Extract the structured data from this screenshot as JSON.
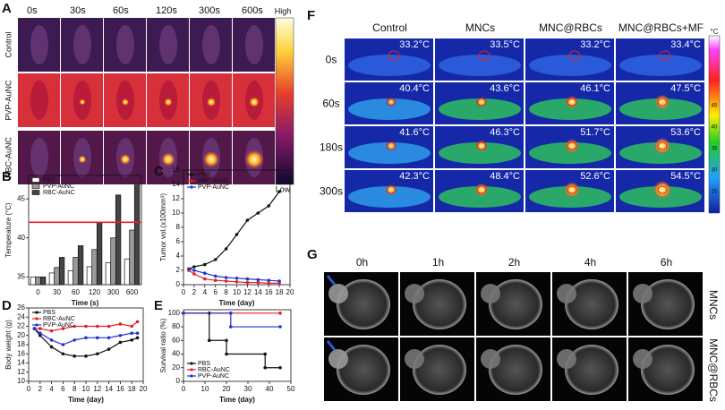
{
  "chart_data": [
    {
      "type": "bar",
      "label": "B",
      "xlabel": "Time (s)",
      "ylabel": "Temperature (°C)",
      "categories": [
        "0",
        "30",
        "60",
        "120",
        "300",
        "600"
      ],
      "series": [
        {
          "name": "PBS",
          "color": "#ffffff",
          "values": [
            35,
            35.5,
            35.8,
            36.3,
            36.8,
            37.3
          ]
        },
        {
          "name": "PVP-AuNC",
          "color": "#9a9a9a",
          "values": [
            35,
            36.2,
            37.5,
            38.5,
            40,
            41
          ]
        },
        {
          "name": "RBC-AuNC",
          "color": "#444444",
          "values": [
            35,
            37.5,
            39,
            42,
            45.5,
            47
          ]
        }
      ],
      "reference_line": {
        "value": 42,
        "color": "#e0202a"
      },
      "ylim": [
        34,
        48
      ],
      "yticks": [
        35,
        40,
        45
      ],
      "legend": "upper left"
    },
    {
      "type": "line",
      "label": "C",
      "xlabel": "Time (day)",
      "ylabel": "Tumor vol.(x100mm³)",
      "series": [
        {
          "name": "PBS",
          "color": "#111111",
          "x": [
            1,
            2,
            4,
            6,
            8,
            10,
            12,
            14,
            16,
            18
          ],
          "values": [
            2.2,
            2.5,
            2.8,
            3.5,
            5,
            7,
            9,
            10,
            11,
            13
          ]
        },
        {
          "name": "RBC-AuNC",
          "color": "#e0202a",
          "x": [
            1,
            2,
            4,
            6,
            8,
            10,
            12,
            14,
            16,
            18
          ],
          "values": [
            2,
            1.5,
            0.8,
            0.6,
            0.5,
            0.4,
            0.3,
            0.3,
            0.2,
            0.2
          ]
        },
        {
          "name": "PVP-AuNC",
          "color": "#2233cc",
          "x": [
            1,
            2,
            4,
            6,
            8,
            10,
            12,
            14,
            16,
            18
          ],
          "values": [
            2.2,
            2,
            1.6,
            1.2,
            1,
            0.9,
            0.8,
            0.7,
            0.6,
            0.5
          ]
        }
      ],
      "xlim": [
        0,
        20
      ],
      "xticks": [
        0,
        2,
        4,
        6,
        8,
        10,
        12,
        14,
        16,
        18,
        20
      ],
      "ylim": [
        0,
        16
      ],
      "yticks": [
        0,
        2,
        4,
        6,
        8,
        10,
        12,
        14,
        16
      ],
      "legend": "upper left"
    },
    {
      "type": "line",
      "label": "D",
      "xlabel": "Time (day)",
      "ylabel": "Body weight (g)",
      "series": [
        {
          "name": "PBS",
          "color": "#111111",
          "x": [
            1,
            2,
            4,
            6,
            8,
            10,
            12,
            14,
            16,
            18,
            19
          ],
          "values": [
            21.5,
            20,
            17.5,
            16,
            15.5,
            15.5,
            16,
            17,
            18.5,
            19,
            19.5
          ]
        },
        {
          "name": "RBC-AuNC",
          "color": "#e0202a",
          "x": [
            1,
            2,
            4,
            6,
            8,
            10,
            12,
            14,
            16,
            18,
            19
          ],
          "values": [
            21.5,
            21.5,
            21,
            21.5,
            22,
            22,
            22,
            22,
            22.5,
            22,
            23
          ]
        },
        {
          "name": "PVP-AuNC",
          "color": "#2233cc",
          "x": [
            1,
            2,
            4,
            6,
            8,
            10,
            12,
            14,
            16,
            18,
            19
          ],
          "values": [
            21.5,
            20.5,
            19,
            18,
            19,
            19.5,
            19.5,
            19.5,
            20,
            20.5,
            20.5
          ]
        }
      ],
      "xlim": [
        0,
        20
      ],
      "xticks": [
        0,
        2,
        4,
        6,
        8,
        10,
        12,
        14,
        16,
        18,
        20
      ],
      "ylim": [
        10,
        26
      ],
      "yticks": [
        10,
        12,
        14,
        16,
        18,
        20,
        22,
        24,
        26
      ],
      "legend": "upper left"
    },
    {
      "type": "line",
      "label": "E",
      "xlabel": "Time (day)",
      "ylabel": "Survival ratio (%)",
      "series": [
        {
          "name": "PBS",
          "color": "#111111",
          "x": [
            0,
            12,
            12,
            20,
            20,
            38,
            38,
            45
          ],
          "values": [
            100,
            100,
            60,
            60,
            40,
            40,
            20,
            20
          ]
        },
        {
          "name": "RBC-AuNC",
          "color": "#e0202a",
          "x": [
            0,
            45
          ],
          "values": [
            100,
            100
          ]
        },
        {
          "name": "PVP-AuNC",
          "color": "#2233cc",
          "x": [
            0,
            22,
            22,
            45
          ],
          "values": [
            100,
            100,
            80,
            80
          ]
        }
      ],
      "xlim": [
        0,
        50
      ],
      "xticks": [
        0,
        10,
        20,
        30,
        40,
        50
      ],
      "ylim": [
        0,
        105
      ],
      "yticks": [
        0,
        20,
        40,
        60,
        80,
        100
      ],
      "legend": "lower left"
    }
  ],
  "panel_a": {
    "label": "A",
    "columns": [
      "0s",
      "30s",
      "60s",
      "120s",
      "300s",
      "600s"
    ],
    "rows": [
      "Control",
      "PVP-AuNC",
      "RBC-AuNC"
    ],
    "colorbar_top": "High",
    "colorbar_bottom": "Low"
  },
  "panel_f": {
    "label": "F",
    "columns": [
      "Control",
      "MNCs",
      "MNC@RBCs",
      "MNC@RBCs+MF"
    ],
    "rows": [
      "0s",
      "60s",
      "180s",
      "300s"
    ],
    "temperatures": [
      [
        "33.2°C",
        "33.5°C",
        "33.2°C",
        "33.4°C"
      ],
      [
        "40.4°C",
        "43.6°C",
        "46.1°C",
        "47.5°C"
      ],
      [
        "41.6°C",
        "46.3°C",
        "51.7°C",
        "53.6°C"
      ],
      [
        "42.3°C",
        "48.4°C",
        "52.6°C",
        "54.5°C"
      ]
    ],
    "colorbar_unit": "°C",
    "colorbar_ticks": [
      45,
      40,
      35,
      30,
      25
    ]
  },
  "panel_g": {
    "label": "G",
    "columns": [
      "0h",
      "1h",
      "2h",
      "4h",
      "6h"
    ],
    "rows": [
      "MNCs",
      "MNC@RBCs"
    ]
  }
}
